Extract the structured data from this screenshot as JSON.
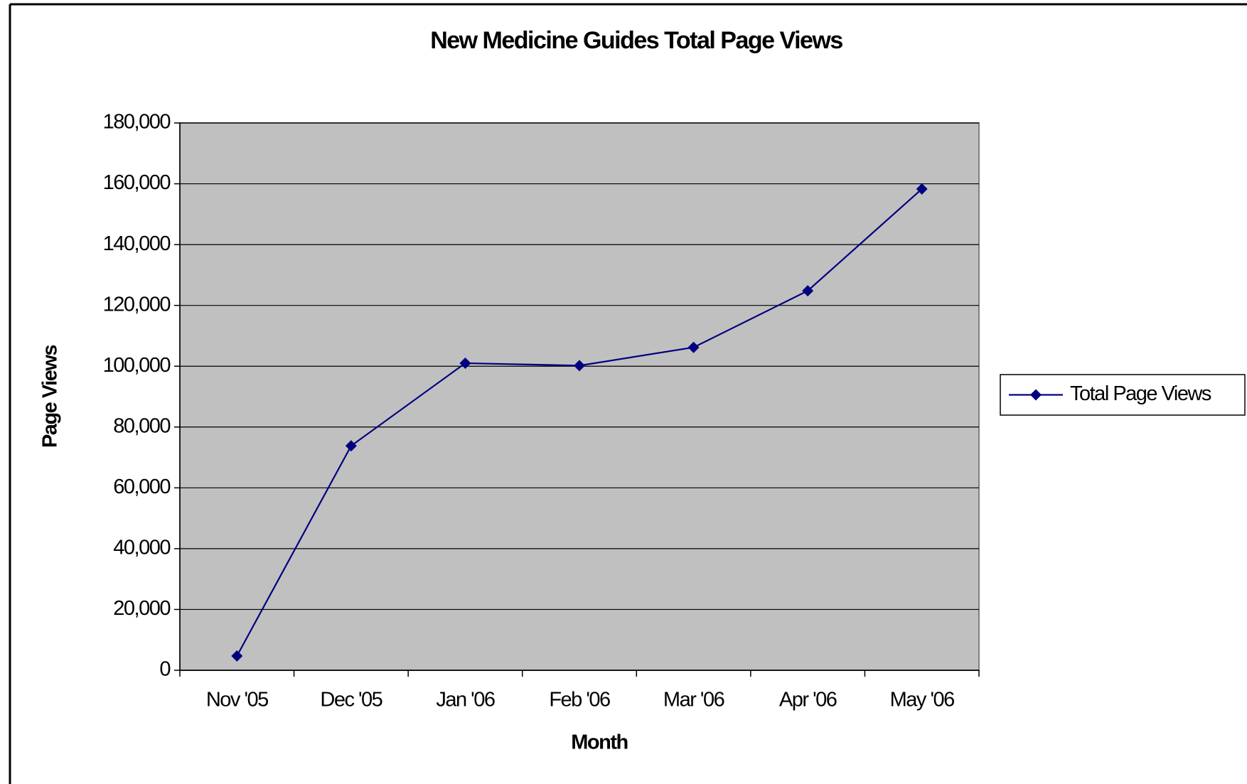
{
  "chart_data": {
    "type": "line",
    "title": "New Medicine Guides Total Page Views",
    "x_label": "Month",
    "y_label": "Page Views",
    "categories": [
      "Nov '05",
      "Dec '05",
      "Jan '06",
      "Feb '06",
      "Mar '06",
      "Apr '06",
      "May '06"
    ],
    "series": [
      {
        "name": "Total Page Views",
        "color": "#000080",
        "values": [
          4700,
          73800,
          101000,
          100200,
          106200,
          124800,
          158300
        ]
      }
    ],
    "ylim": [
      0,
      180000
    ],
    "yticks": [
      0,
      {
        "value": 20000,
        "label": "20,000"
      },
      {
        "value": 40000,
        "label": "40,000"
      },
      {
        "value": 60000,
        "label": "60,000"
      },
      {
        "value": 80000,
        "label": "80,000"
      },
      {
        "value": 100000,
        "label": "100,000"
      },
      {
        "value": 120000,
        "label": "120,000"
      },
      {
        "value": 140000,
        "label": "140,000"
      },
      {
        "value": 160000,
        "label": "160,000"
      },
      {
        "value": 180000,
        "label": "180,000"
      }
    ],
    "grid": true,
    "plot_background": "#c0c0c0",
    "legend": "right"
  }
}
